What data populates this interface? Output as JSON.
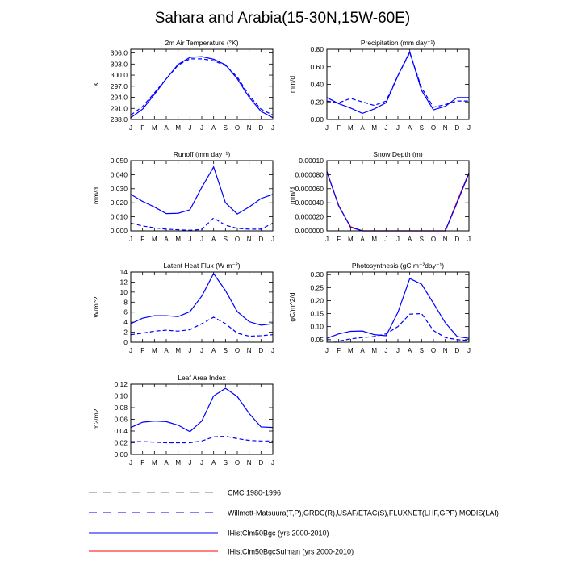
{
  "title": "Sahara and Arabia(15-30N,15W-60E)",
  "month_labels": [
    "J",
    "F",
    "M",
    "A",
    "M",
    "J",
    "J",
    "A",
    "S",
    "O",
    "N",
    "D",
    "J"
  ],
  "colors": {
    "obs": "#0000ff",
    "obs_alt": "#777777",
    "bgc": "#0000ff",
    "sulman": "#ff0000"
  },
  "legend": {
    "items": [
      {
        "label": "CMC 1980-1996",
        "color": "#777777",
        "style": "dashed"
      },
      {
        "label": "Willmott-Matsuura(T,P),GRDC(R),USAF/ETAC(S),FLUXNET(LHF,GPP),MODIS(LAI)",
        "color": "#0000ff",
        "style": "dashed"
      },
      {
        "label": "IHistClm50Bgc (yrs 2000-2010)",
        "color": "#0000ff",
        "style": "solid"
      },
      {
        "label": "IHistClm50BgcSulman (yrs 2000-2010)",
        "color": "#ff0000",
        "style": "solid"
      }
    ]
  },
  "chart_data": [
    {
      "type": "line",
      "title": "2m Air Temperature (°K)",
      "ylabel": "K",
      "ylim": [
        288,
        307
      ],
      "yticks": [
        288,
        291,
        294,
        297,
        300,
        303,
        306
      ],
      "ytick_labels": [
        "288.0",
        "291.0",
        "294.0",
        "297.0",
        "300.0",
        "303.0",
        "306.0"
      ],
      "series": [
        {
          "style": "dashed",
          "color": "#0000ff",
          "values": [
            289.2,
            291.5,
            295.2,
            299.0,
            302.7,
            304.4,
            304.4,
            303.9,
            302.6,
            299.5,
            294.5,
            290.8,
            289.2
          ]
        },
        {
          "style": "solid",
          "color": "#0000ff",
          "values": [
            288.5,
            290.8,
            294.8,
            299.0,
            302.9,
            304.8,
            305.0,
            304.3,
            302.8,
            299.0,
            294.0,
            290.2,
            288.5
          ]
        }
      ]
    },
    {
      "type": "line",
      "title": "Precipitation (mm day⁻¹)",
      "ylabel": "mm/d",
      "ylim": [
        0,
        0.8
      ],
      "yticks": [
        0,
        0.2,
        0.4,
        0.6,
        0.8
      ],
      "ytick_labels": [
        "0.00",
        "0.20",
        "0.40",
        "0.60",
        "0.80"
      ],
      "series": [
        {
          "style": "dashed",
          "color": "#0000ff",
          "values": [
            0.21,
            0.19,
            0.24,
            0.2,
            0.16,
            0.21,
            0.5,
            0.76,
            0.36,
            0.14,
            0.17,
            0.21,
            0.21
          ]
        },
        {
          "style": "solid",
          "color": "#0000ff",
          "values": [
            0.25,
            0.18,
            0.13,
            0.07,
            0.12,
            0.19,
            0.5,
            0.77,
            0.33,
            0.11,
            0.15,
            0.25,
            0.25
          ]
        }
      ]
    },
    {
      "type": "line",
      "title": "Runoff (mm day⁻¹)",
      "ylabel": "mm/d",
      "ylim": [
        0,
        0.05
      ],
      "yticks": [
        0,
        0.01,
        0.02,
        0.03,
        0.04,
        0.05
      ],
      "ytick_labels": [
        "0.000",
        "0.010",
        "0.020",
        "0.030",
        "0.040",
        "0.050"
      ],
      "series": [
        {
          "style": "dashed",
          "color": "#0000ff",
          "values": [
            0.0055,
            0.0035,
            0.0022,
            0.0012,
            0.0008,
            0.0004,
            0.001,
            0.0092,
            0.004,
            0.0018,
            0.0012,
            0.0012,
            0.0055
          ]
        },
        {
          "style": "solid",
          "color": "#0000ff",
          "values": [
            0.026,
            0.021,
            0.017,
            0.0123,
            0.0125,
            0.015,
            0.031,
            0.0455,
            0.02,
            0.012,
            0.017,
            0.023,
            0.026
          ]
        }
      ]
    },
    {
      "type": "line",
      "title": "Snow Depth (m)",
      "ylabel": "mm/d",
      "ylim": [
        0,
        0.0001
      ],
      "yticks": [
        0,
        2e-05,
        4e-05,
        6e-05,
        8e-05,
        0.0001
      ],
      "ytick_labels": [
        "0.000000",
        "0.000020",
        "0.000040",
        "0.000060",
        "0.000080",
        "0.00010"
      ],
      "series": [
        {
          "style": "solid",
          "color": "#ff0000",
          "values": [
            8.5e-05,
            3.5e-05,
            6e-06,
            0,
            0,
            0,
            0,
            0,
            0,
            0,
            0,
            4.2e-05,
            8.3e-05
          ]
        },
        {
          "style": "solid",
          "color": "#0000ff",
          "values": [
            8.4e-05,
            3.6e-05,
            5e-06,
            0,
            0,
            0,
            0,
            0,
            0,
            0,
            0,
            4e-05,
            8.2e-05
          ]
        }
      ]
    },
    {
      "type": "line",
      "title": "Latent Heat Flux (W m⁻²)",
      "ylabel": "W/m^2",
      "ylim": [
        0,
        14
      ],
      "yticks": [
        0,
        2,
        4,
        6,
        8,
        10,
        12,
        14
      ],
      "ytick_labels": [
        "0",
        "2",
        "4",
        "6",
        "8",
        "10",
        "12",
        "14"
      ],
      "series": [
        {
          "style": "dashed",
          "color": "#0000ff",
          "values": [
            1.5,
            1.8,
            2.2,
            2.4,
            2.2,
            2.5,
            3.7,
            5.0,
            3.7,
            1.8,
            1.2,
            1.3,
            1.5
          ]
        },
        {
          "style": "solid",
          "color": "#0000ff",
          "values": [
            3.7,
            4.8,
            5.3,
            5.3,
            5.1,
            6.1,
            9.2,
            13.7,
            10.3,
            6.1,
            4.1,
            3.4,
            3.7
          ]
        }
      ]
    },
    {
      "type": "line",
      "title": "Photosynthesis (gC m⁻²day⁻¹)",
      "ylabel": "gC/m^2/d",
      "ylim": [
        0.04,
        0.31
      ],
      "yticks": [
        0.05,
        0.1,
        0.15,
        0.2,
        0.25,
        0.3
      ],
      "ytick_labels": [
        "0.05",
        "0.10",
        "0.15",
        "0.20",
        "0.25",
        "0.30"
      ],
      "series": [
        {
          "style": "dashed",
          "color": "#0000ff",
          "values": [
            0.045,
            0.044,
            0.053,
            0.058,
            0.062,
            0.072,
            0.1,
            0.148,
            0.15,
            0.085,
            0.058,
            0.05,
            0.046
          ]
        },
        {
          "style": "solid",
          "color": "#0000ff",
          "values": [
            0.055,
            0.072,
            0.082,
            0.083,
            0.069,
            0.065,
            0.155,
            0.285,
            0.263,
            0.19,
            0.115,
            0.062,
            0.055
          ]
        }
      ]
    },
    {
      "type": "line",
      "title": "Leaf Area Index",
      "ylabel": "m2/m2",
      "ylim": [
        0,
        0.12
      ],
      "yticks": [
        0,
        0.02,
        0.04,
        0.06,
        0.08,
        0.1,
        0.12
      ],
      "ytick_labels": [
        "0.00",
        "0.02",
        "0.04",
        "0.06",
        "0.08",
        "0.10",
        "0.12"
      ],
      "series": [
        {
          "style": "dashed",
          "color": "#0000ff",
          "values": [
            0.022,
            0.022,
            0.021,
            0.02,
            0.02,
            0.02,
            0.023,
            0.03,
            0.031,
            0.027,
            0.024,
            0.023,
            0.023
          ]
        },
        {
          "style": "solid",
          "color": "#0000ff",
          "values": [
            0.046,
            0.055,
            0.057,
            0.056,
            0.05,
            0.039,
            0.057,
            0.1,
            0.113,
            0.099,
            0.07,
            0.047,
            0.046
          ]
        }
      ]
    }
  ]
}
